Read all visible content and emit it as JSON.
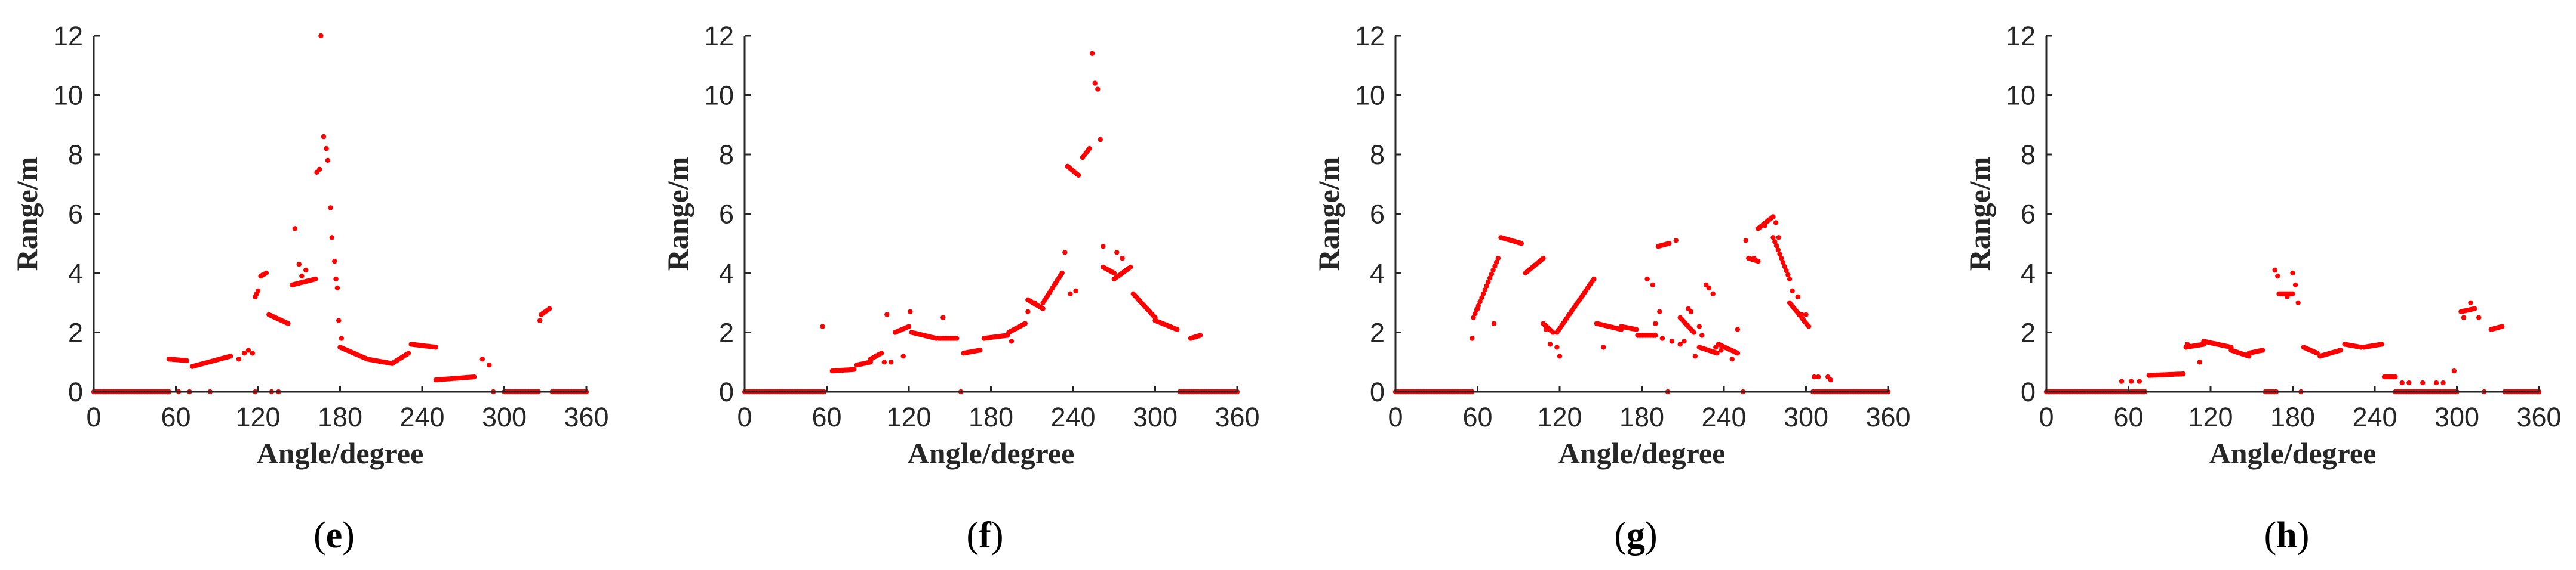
{
  "chart_data": [
    {
      "type": "scatter",
      "caption": "e",
      "xlabel": "Angle/degree",
      "ylabel": "Range/m",
      "xlim": [
        0,
        360
      ],
      "ylim": [
        0,
        12
      ],
      "xticks": [
        0,
        60,
        120,
        180,
        240,
        300,
        360
      ],
      "yticks": [
        0,
        2,
        4,
        6,
        8,
        10,
        12
      ],
      "grid": false,
      "marker_color": "#ff0000",
      "segments": [
        {
          "x": [
            0,
            55
          ],
          "y": [
            0,
            0
          ]
        },
        {
          "x": [
            55,
            68
          ],
          "y": [
            1.1,
            1.05
          ]
        },
        {
          "x": [
            72,
            100
          ],
          "y": [
            0.85,
            1.2
          ]
        },
        {
          "x": [
            118,
            120
          ],
          "y": [
            3.2,
            3.4
          ]
        },
        {
          "x": [
            122,
            126
          ],
          "y": [
            3.9,
            4.0
          ]
        },
        {
          "x": [
            128,
            142
          ],
          "y": [
            2.6,
            2.3
          ]
        },
        {
          "x": [
            145,
            162
          ],
          "y": [
            3.6,
            3.8
          ]
        },
        {
          "x": [
            180,
            200
          ],
          "y": [
            1.5,
            1.1
          ]
        },
        {
          "x": [
            200,
            218
          ],
          "y": [
            1.1,
            0.95
          ]
        },
        {
          "x": [
            218,
            230
          ],
          "y": [
            0.95,
            1.3
          ]
        },
        {
          "x": [
            232,
            250
          ],
          "y": [
            1.6,
            1.5
          ]
        },
        {
          "x": [
            250,
            278
          ],
          "y": [
            0.4,
            0.5
          ]
        },
        {
          "x": [
            300,
            325
          ],
          "y": [
            0,
            0
          ]
        },
        {
          "x": [
            327,
            333
          ],
          "y": [
            2.6,
            2.8
          ]
        },
        {
          "x": [
            335,
            360
          ],
          "y": [
            0,
            0
          ]
        }
      ],
      "points": [
        [
          62,
          0
        ],
        [
          70,
          0
        ],
        [
          85,
          0
        ],
        [
          106,
          1.1
        ],
        [
          110,
          1.3
        ],
        [
          113,
          1.4
        ],
        [
          116,
          1.3
        ],
        [
          118,
          0
        ],
        [
          130,
          0
        ],
        [
          135,
          0
        ],
        [
          147,
          5.5
        ],
        [
          150,
          4.3
        ],
        [
          152,
          3.9
        ],
        [
          155,
          4.1
        ],
        [
          163,
          7.4
        ],
        [
          165,
          7.5
        ],
        [
          166,
          12.0
        ],
        [
          168,
          8.6
        ],
        [
          170,
          8.2
        ],
        [
          171,
          7.8
        ],
        [
          173,
          6.2
        ],
        [
          174,
          5.2
        ],
        [
          176,
          4.4
        ],
        [
          177,
          3.8
        ],
        [
          178,
          3.5
        ],
        [
          179,
          2.4
        ],
        [
          181,
          1.8
        ],
        [
          284,
          1.1
        ],
        [
          289,
          0.9
        ],
        [
          292,
          0
        ],
        [
          326,
          2.4
        ]
      ]
    },
    {
      "type": "scatter",
      "caption": "f",
      "xlabel": "Angle/degree",
      "ylabel": "Range/m",
      "xlim": [
        0,
        360
      ],
      "ylim": [
        0,
        12
      ],
      "xticks": [
        0,
        60,
        120,
        180,
        240,
        300,
        360
      ],
      "yticks": [
        0,
        2,
        4,
        6,
        8,
        10,
        12
      ],
      "grid": false,
      "marker_color": "#ff0000",
      "segments": [
        {
          "x": [
            0,
            58
          ],
          "y": [
            0,
            0
          ]
        },
        {
          "x": [
            64,
            80
          ],
          "y": [
            0.7,
            0.75
          ]
        },
        {
          "x": [
            82,
            92
          ],
          "y": [
            0.9,
            1.0
          ]
        },
        {
          "x": [
            92,
            100
          ],
          "y": [
            1.1,
            1.3
          ]
        },
        {
          "x": [
            110,
            120
          ],
          "y": [
            2.0,
            2.2
          ]
        },
        {
          "x": [
            122,
            140
          ],
          "y": [
            2.0,
            1.8
          ]
        },
        {
          "x": [
            142,
            155
          ],
          "y": [
            1.8,
            1.8
          ]
        },
        {
          "x": [
            160,
            172
          ],
          "y": [
            1.3,
            1.4
          ]
        },
        {
          "x": [
            175,
            192
          ],
          "y": [
            1.8,
            1.9
          ]
        },
        {
          "x": [
            193,
            205
          ],
          "y": [
            2.0,
            2.3
          ]
        },
        {
          "x": [
            207,
            218
          ],
          "y": [
            3.1,
            2.8
          ]
        },
        {
          "x": [
            218,
            232
          ],
          "y": [
            3.0,
            4.0
          ]
        },
        {
          "x": [
            236,
            244
          ],
          "y": [
            7.6,
            7.3
          ]
        },
        {
          "x": [
            247,
            252
          ],
          "y": [
            7.9,
            8.2
          ]
        },
        {
          "x": [
            262,
            270
          ],
          "y": [
            4.2,
            4.0
          ]
        },
        {
          "x": [
            270,
            282
          ],
          "y": [
            3.8,
            4.2
          ]
        },
        {
          "x": [
            284,
            300
          ],
          "y": [
            3.3,
            2.5
          ]
        },
        {
          "x": [
            300,
            316
          ],
          "y": [
            2.4,
            2.1
          ]
        },
        {
          "x": [
            318,
            334
          ],
          "y": [
            0,
            0
          ]
        },
        {
          "x": [
            326,
            333
          ],
          "y": [
            1.8,
            1.9
          ]
        },
        {
          "x": [
            334,
            360
          ],
          "y": [
            0,
            0
          ]
        }
      ],
      "points": [
        [
          57,
          2.2
        ],
        [
          102,
          1.0
        ],
        [
          104,
          2.6
        ],
        [
          107,
          1.0
        ],
        [
          116,
          1.2
        ],
        [
          121,
          2.7
        ],
        [
          145,
          2.5
        ],
        [
          158,
          0
        ],
        [
          195,
          1.7
        ],
        [
          207,
          2.7
        ],
        [
          212,
          3.0
        ],
        [
          234,
          4.7
        ],
        [
          238,
          3.3
        ],
        [
          242,
          3.4
        ],
        [
          254,
          11.4
        ],
        [
          256,
          10.4
        ],
        [
          258,
          10.2
        ],
        [
          260,
          8.5
        ],
        [
          262,
          4.9
        ],
        [
          272,
          4.7
        ],
        [
          276,
          4.5
        ]
      ]
    },
    {
      "type": "scatter",
      "caption": "g",
      "xlabel": "Angle/degree",
      "ylabel": "Range/m",
      "xlim": [
        0,
        360
      ],
      "ylim": [
        0,
        12
      ],
      "xticks": [
        0,
        60,
        120,
        180,
        240,
        300,
        360
      ],
      "yticks": [
        0,
        2,
        4,
        6,
        8,
        10,
        12
      ],
      "grid": false,
      "marker_color": "#ff0000",
      "segments": [
        {
          "x": [
            0,
            56
          ],
          "y": [
            0,
            0
          ]
        },
        {
          "x": [
            57,
            75
          ],
          "y": [
            2.5,
            4.5
          ]
        },
        {
          "x": [
            77,
            92
          ],
          "y": [
            5.2,
            5.0
          ]
        },
        {
          "x": [
            95,
            108
          ],
          "y": [
            4.0,
            4.5
          ]
        },
        {
          "x": [
            108,
            115
          ],
          "y": [
            2.3,
            2.0
          ]
        },
        {
          "x": [
            118,
            145
          ],
          "y": [
            2.0,
            3.8
          ]
        },
        {
          "x": [
            147,
            165
          ],
          "y": [
            2.3,
            2.1
          ]
        },
        {
          "x": [
            165,
            176
          ],
          "y": [
            2.2,
            2.1
          ]
        },
        {
          "x": [
            177,
            190
          ],
          "y": [
            1.9,
            1.9
          ]
        },
        {
          "x": [
            192,
            200
          ],
          "y": [
            4.9,
            5.0
          ]
        },
        {
          "x": [
            208,
            218
          ],
          "y": [
            2.5,
            2.0
          ]
        },
        {
          "x": [
            222,
            235
          ],
          "y": [
            1.5,
            1.3
          ]
        },
        {
          "x": [
            236,
            250
          ],
          "y": [
            1.6,
            1.3
          ]
        },
        {
          "x": [
            258,
            265
          ],
          "y": [
            4.5,
            4.4
          ]
        },
        {
          "x": [
            265,
            276
          ],
          "y": [
            5.5,
            5.9
          ]
        },
        {
          "x": [
            276,
            288
          ],
          "y": [
            5.2,
            3.8
          ]
        },
        {
          "x": [
            288,
            302
          ],
          "y": [
            3.0,
            2.2
          ]
        },
        {
          "x": [
            305,
            360
          ],
          "y": [
            0,
            0
          ]
        }
      ],
      "points": [
        [
          56,
          1.8
        ],
        [
          60,
          2.8
        ],
        [
          72,
          2.3
        ],
        [
          110,
          2.1
        ],
        [
          113,
          1.6
        ],
        [
          118,
          1.5
        ],
        [
          120,
          1.2
        ],
        [
          152,
          1.5
        ],
        [
          184,
          3.8
        ],
        [
          188,
          3.6
        ],
        [
          190,
          2.3
        ],
        [
          193,
          2.7
        ],
        [
          195,
          1.8
        ],
        [
          199,
          0
        ],
        [
          202,
          1.7
        ],
        [
          205,
          5.1
        ],
        [
          208,
          1.6
        ],
        [
          211,
          1.7
        ],
        [
          214,
          2.8
        ],
        [
          216,
          2.7
        ],
        [
          219,
          1.2
        ],
        [
          222,
          2.2
        ],
        [
          224,
          1.9
        ],
        [
          227,
          3.6
        ],
        [
          229,
          3.5
        ],
        [
          232,
          3.3
        ],
        [
          234,
          1.5
        ],
        [
          238,
          1.4
        ],
        [
          246,
          1.1
        ],
        [
          250,
          2.1
        ],
        [
          254,
          0
        ],
        [
          256,
          5.1
        ],
        [
          262,
          4.5
        ],
        [
          270,
          5.6
        ],
        [
          278,
          5.7
        ],
        [
          280,
          5.2
        ],
        [
          290,
          3.4
        ],
        [
          294,
          3.2
        ],
        [
          297,
          2.6
        ],
        [
          300,
          2.6
        ],
        [
          306,
          0.5
        ],
        [
          309,
          0.5
        ],
        [
          316,
          0.5
        ],
        [
          318,
          0.4
        ]
      ]
    },
    {
      "type": "scatter",
      "caption": "h",
      "xlabel": "Angle/degree",
      "ylabel": "Range/m",
      "xlim": [
        0,
        360
      ],
      "ylim": [
        0,
        12
      ],
      "xticks": [
        0,
        60,
        120,
        180,
        240,
        300,
        360
      ],
      "yticks": [
        0,
        2,
        4,
        6,
        8,
        10,
        12
      ],
      "grid": false,
      "marker_color": "#ff0000",
      "segments": [
        {
          "x": [
            0,
            60
          ],
          "y": [
            0,
            0
          ]
        },
        {
          "x": [
            62,
            72
          ],
          "y": [
            0,
            0
          ]
        },
        {
          "x": [
            75,
            100
          ],
          "y": [
            0.55,
            0.6
          ]
        },
        {
          "x": [
            102,
            115
          ],
          "y": [
            1.5,
            1.6
          ]
        },
        {
          "x": [
            115,
            135
          ],
          "y": [
            1.7,
            1.5
          ]
        },
        {
          "x": [
            135,
            148
          ],
          "y": [
            1.4,
            1.2
          ]
        },
        {
          "x": [
            148,
            158
          ],
          "y": [
            1.3,
            1.4
          ]
        },
        {
          "x": [
            160,
            168
          ],
          "y": [
            0,
            0
          ]
        },
        {
          "x": [
            170,
            180
          ],
          "y": [
            3.3,
            3.3
          ]
        },
        {
          "x": [
            188,
            198
          ],
          "y": [
            1.5,
            1.3
          ]
        },
        {
          "x": [
            200,
            215
          ],
          "y": [
            1.2,
            1.4
          ]
        },
        {
          "x": [
            218,
            230
          ],
          "y": [
            1.6,
            1.5
          ]
        },
        {
          "x": [
            232,
            245
          ],
          "y": [
            1.5,
            1.6
          ]
        },
        {
          "x": [
            247,
            255
          ],
          "y": [
            0.5,
            0.5
          ]
        },
        {
          "x": [
            255,
            300
          ],
          "y": [
            0,
            0
          ]
        },
        {
          "x": [
            303,
            313
          ],
          "y": [
            2.7,
            2.8
          ]
        },
        {
          "x": [
            325,
            333
          ],
          "y": [
            2.1,
            2.2
          ]
        },
        {
          "x": [
            335,
            360
          ],
          "y": [
            0,
            0
          ]
        }
      ],
      "points": [
        [
          55,
          0.35
        ],
        [
          62,
          0.35
        ],
        [
          68,
          0.35
        ],
        [
          103,
          1.6
        ],
        [
          112,
          1.0
        ],
        [
          167,
          4.1
        ],
        [
          169,
          3.9
        ],
        [
          176,
          3.2
        ],
        [
          180,
          4.0
        ],
        [
          182,
          3.6
        ],
        [
          184,
          3.0
        ],
        [
          186,
          0
        ],
        [
          260,
          0.3
        ],
        [
          265,
          0.3
        ],
        [
          275,
          0.3
        ],
        [
          285,
          0.3
        ],
        [
          290,
          0.3
        ],
        [
          298,
          0.7
        ],
        [
          305,
          2.5
        ],
        [
          310,
          3.0
        ],
        [
          316,
          2.5
        ],
        [
          320,
          0
        ]
      ]
    }
  ]
}
